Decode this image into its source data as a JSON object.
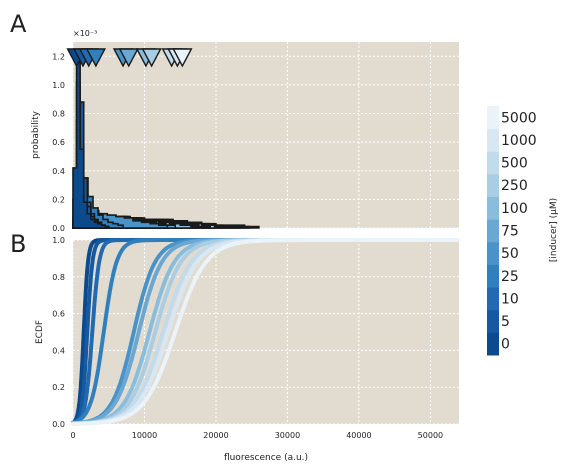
{
  "chart_data": [
    {
      "panel_label": "A",
      "type": "histogram",
      "ylabel": "probability",
      "y_multiplier": "×10⁻³",
      "y_ticks": [
        "0.0",
        "0.2",
        "0.4",
        "0.6",
        "0.8",
        "1.0",
        "1.2"
      ],
      "ylim": [
        0,
        1.3
      ],
      "xlim": [
        0,
        54000
      ],
      "grid": true,
      "background": "#e2dcd0",
      "markers": "downward triangles marking the mean fluorescence of each inducer concentration",
      "series": [
        {
          "inducer_uM": 0,
          "marker_x": 500,
          "bin_width": 500,
          "values": [
            0.42,
            1.18,
            0.55,
            0.18,
            0.1,
            0.06,
            0.04,
            0.03,
            0.02,
            0.01
          ]
        },
        {
          "inducer_uM": 5,
          "marker_x": 1400,
          "bin_width": 500,
          "values": [
            0.2,
            1.02,
            0.88,
            0.35,
            0.15,
            0.08,
            0.05,
            0.03,
            0.02,
            0.01
          ]
        },
        {
          "inducer_uM": 10,
          "marker_x": 2200,
          "bin_width": 500,
          "values": [
            0.08,
            0.75,
            0.6,
            0.32,
            0.18,
            0.1,
            0.06,
            0.04,
            0.02,
            0.01
          ]
        },
        {
          "inducer_uM": 25,
          "marker_x": 3200,
          "bin_width": 700,
          "values": [
            0.05,
            0.4,
            0.35,
            0.22,
            0.14,
            0.09,
            0.06,
            0.04,
            0.03,
            0.02
          ]
        },
        {
          "inducer_uM": 50,
          "marker_x": 7000,
          "bin_width": 1200,
          "values": [
            0.03,
            0.1,
            0.12,
            0.1,
            0.09,
            0.08,
            0.07,
            0.05,
            0.04,
            0.03,
            0.02
          ]
        },
        {
          "inducer_uM": 75,
          "marker_x": 7800,
          "bin_width": 1300,
          "values": [
            0.02,
            0.08,
            0.1,
            0.09,
            0.08,
            0.08,
            0.06,
            0.05,
            0.04,
            0.03,
            0.02
          ]
        },
        {
          "inducer_uM": 100,
          "marker_x": 10200,
          "bin_width": 1500,
          "values": [
            0.02,
            0.05,
            0.08,
            0.09,
            0.08,
            0.07,
            0.06,
            0.05,
            0.04,
            0.03,
            0.02,
            0.01
          ]
        },
        {
          "inducer_uM": 250,
          "marker_x": 11000,
          "bin_width": 1600,
          "values": [
            0.02,
            0.05,
            0.07,
            0.08,
            0.08,
            0.07,
            0.06,
            0.05,
            0.04,
            0.03,
            0.02,
            0.01
          ]
        },
        {
          "inducer_uM": 500,
          "marker_x": 13800,
          "bin_width": 1800,
          "values": [
            0.02,
            0.04,
            0.06,
            0.07,
            0.07,
            0.06,
            0.06,
            0.05,
            0.04,
            0.03,
            0.02,
            0.01,
            0.01
          ]
        },
        {
          "inducer_uM": 1000,
          "marker_x": 14600,
          "bin_width": 1900,
          "values": [
            0.02,
            0.04,
            0.05,
            0.07,
            0.07,
            0.06,
            0.06,
            0.05,
            0.04,
            0.03,
            0.02,
            0.01,
            0.01
          ]
        },
        {
          "inducer_uM": 5000,
          "marker_x": 15300,
          "bin_width": 2000,
          "values": [
            0.02,
            0.03,
            0.05,
            0.06,
            0.07,
            0.06,
            0.06,
            0.05,
            0.04,
            0.03,
            0.02,
            0.02,
            0.01
          ]
        }
      ]
    },
    {
      "panel_label": "B",
      "type": "line",
      "ylabel": "ECDF",
      "xlabel": "fluorescence (a.u.)",
      "x_ticks": [
        "0",
        "10000",
        "20000",
        "30000",
        "40000",
        "50000"
      ],
      "y_ticks": [
        "0.0",
        "0.2",
        "0.4",
        "0.6",
        "0.8",
        "1.0"
      ],
      "xlim": [
        0,
        54000
      ],
      "ylim": [
        0,
        1.0
      ],
      "grid": true,
      "background": "#e2dcd0",
      "series": [
        {
          "inducer_uM": 0,
          "median": 1500,
          "spread": 500,
          "tail_end": 14000
        },
        {
          "inducer_uM": 5,
          "median": 2000,
          "spread": 600,
          "tail_end": 16000
        },
        {
          "inducer_uM": 10,
          "median": 2700,
          "spread": 800,
          "tail_end": 18000
        },
        {
          "inducer_uM": 25,
          "median": 4300,
          "spread": 1500,
          "tail_end": 22000
        },
        {
          "inducer_uM": 50,
          "median": 8500,
          "spread": 2500,
          "tail_end": 30000
        },
        {
          "inducer_uM": 75,
          "median": 9200,
          "spread": 2700,
          "tail_end": 34000
        },
        {
          "inducer_uM": 100,
          "median": 10700,
          "spread": 2900,
          "tail_end": 38000
        },
        {
          "inducer_uM": 250,
          "median": 11500,
          "spread": 3000,
          "tail_end": 42000
        },
        {
          "inducer_uM": 500,
          "median": 12600,
          "spread": 3300,
          "tail_end": 46000
        },
        {
          "inducer_uM": 1000,
          "median": 13300,
          "spread": 3400,
          "tail_end": 50000
        },
        {
          "inducer_uM": 5000,
          "median": 14300,
          "spread": 3600,
          "tail_end": 54000
        }
      ]
    }
  ],
  "colorbar": {
    "label": "[inducer] (μM)",
    "ticks": [
      "0",
      "5",
      "10",
      "25",
      "50",
      "75",
      "100",
      "250",
      "500",
      "1000",
      "5000"
    ],
    "colors": [
      "#0b4a8d",
      "#155aa1",
      "#2169b0",
      "#3180be",
      "#4a93c8",
      "#6aa8d3",
      "#8abddc",
      "#a8cde4",
      "#c2dbeb",
      "#d9e7f3",
      "#ebf3fa"
    ]
  }
}
